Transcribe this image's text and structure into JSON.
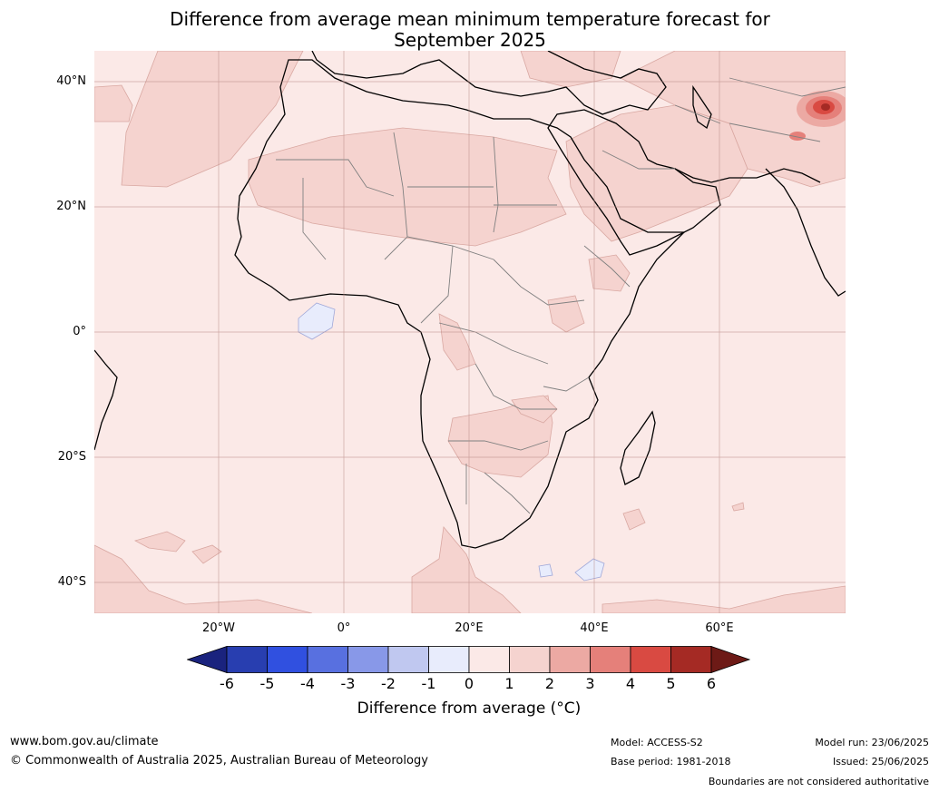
{
  "title_line1": "Difference from average mean minimum temperature forecast for",
  "title_line2": "September 2025",
  "map": {
    "lat_labels": [
      "40°N",
      "20°N",
      "0°",
      "20°S",
      "40°S"
    ],
    "lon_labels": [
      "20°W",
      "0°",
      "20°E",
      "40°E",
      "60°E"
    ],
    "background_color": "#fbe9e7",
    "land_outline_color": "#000000",
    "border_color": "#808080"
  },
  "colorbar": {
    "ticks": [
      "-6",
      "-5",
      "-4",
      "-3",
      "-2",
      "-1",
      "0",
      "1",
      "2",
      "3",
      "4",
      "5",
      "6"
    ],
    "colors": [
      "#1a237e",
      "#283eb0",
      "#3050e0",
      "#5870e0",
      "#8898e8",
      "#c0c8f0",
      "#e8ecfc",
      "#fbe9e7",
      "#f5d3cf",
      "#eca9a3",
      "#e5807a",
      "#d94a42",
      "#a52a24",
      "#6d1a16"
    ],
    "label": "Difference from average (°C)"
  },
  "footer": {
    "website": "www.bom.gov.au/climate",
    "copyright": "© Commonwealth of Australia 2025, Australian Bureau of Meteorology",
    "model": "Model: ACCESS-S2",
    "base_period": "Base period: 1981-2018",
    "model_run": "Model run: 23/06/2025",
    "issued": "Issued: 25/06/2025",
    "disclaimer": "Boundaries are not considered authoritative"
  }
}
